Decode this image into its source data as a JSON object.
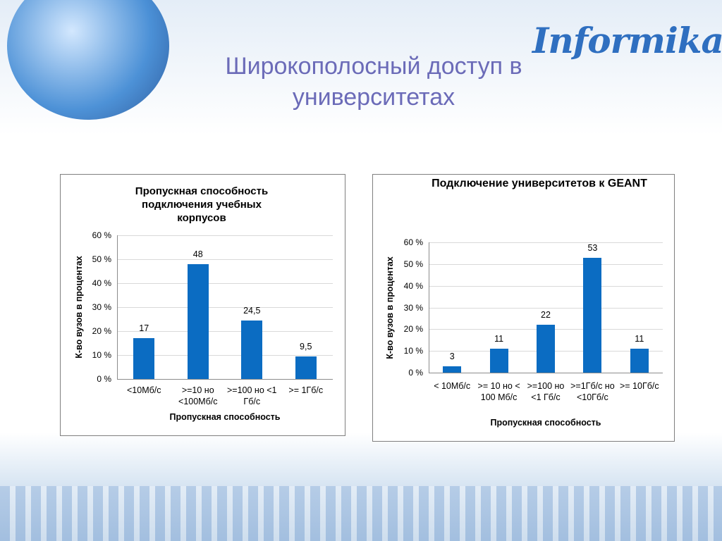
{
  "slide_title": "Широкополосный доступ в университетах",
  "logo": "Informika",
  "chart_data": [
    {
      "type": "bar",
      "title": "Пропускная способность подключения учебных корпусов",
      "xlabel": "Пропускная способность",
      "ylabel": "К-во вузов в процентах",
      "categories": [
        "<10Мб/с",
        ">=10 но <100Мб/с",
        ">=100 но <1 Гб/с",
        ">= 1Гб/с"
      ],
      "values": [
        17,
        48,
        24.5,
        9.5
      ],
      "value_labels": [
        "17",
        "48",
        "24,5",
        "9,5"
      ],
      "color": "#0b6cc2",
      "ylim": [
        0,
        60
      ],
      "yticks": [
        {
          "value": 0,
          "label": "0 %"
        },
        {
          "value": 10,
          "label": "10 %"
        },
        {
          "value": 20,
          "label": "20 %"
        },
        {
          "value": 30,
          "label": "30 %"
        },
        {
          "value": 40,
          "label": "40 %"
        },
        {
          "value": 50,
          "label": "50 %"
        },
        {
          "value": 60,
          "label": "60 %"
        }
      ],
      "grid": true
    },
    {
      "type": "bar",
      "title": "Подключение университетов к GEANT",
      "xlabel": "Пропускная способность",
      "ylabel": "К-во вузов в процентах",
      "categories": [
        "< 10Мб/с",
        ">= 10 но < 100 Мб/с",
        ">=100 но <1 Гб/с",
        ">=1Гб/с но <10Гб/с",
        ">= 10Гб/с"
      ],
      "values": [
        3,
        11,
        22,
        53,
        11
      ],
      "color": "#0b6cc2",
      "ylim": [
        0,
        60
      ],
      "yticks": [
        {
          "value": 0,
          "label": "0 %"
        },
        {
          "value": 10,
          "label": "10 %"
        },
        {
          "value": 20,
          "label": "20 %"
        },
        {
          "value": 30,
          "label": "30 %"
        },
        {
          "value": 40,
          "label": "40 %"
        },
        {
          "value": 50,
          "label": "50 %"
        },
        {
          "value": 60,
          "label": "60 %"
        }
      ],
      "grid": true
    }
  ]
}
